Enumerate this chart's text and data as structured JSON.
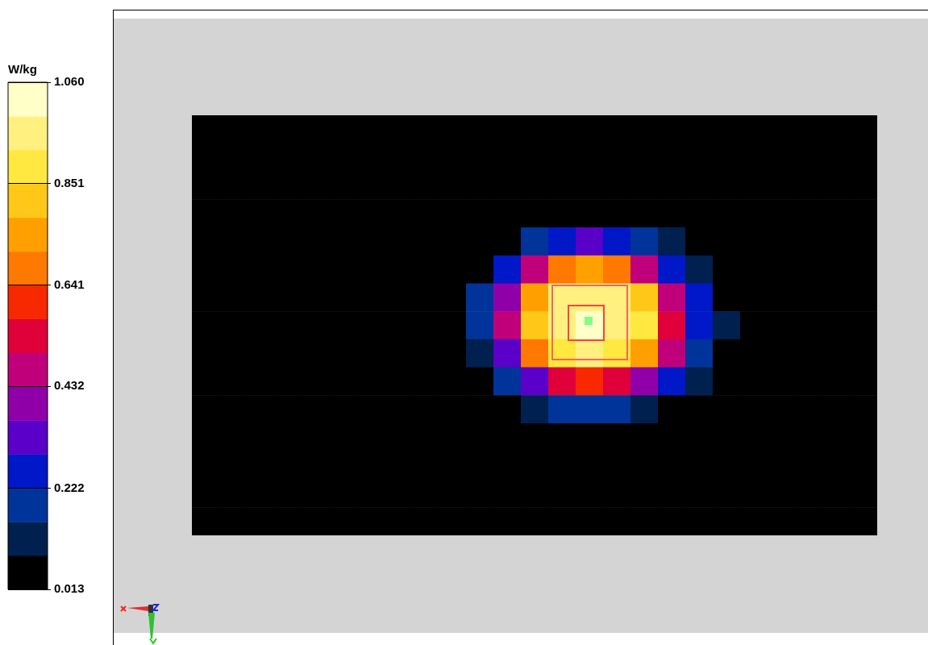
{
  "chart_data": {
    "type": "heatmap",
    "clabel": "W/kg",
    "categories": [
      null,
      null,
      null,
      null,
      null,
      null,
      null,
      null,
      null,
      null,
      null,
      null,
      null,
      null,
      null,
      null,
      null,
      null,
      null,
      null,
      null,
      null,
      null,
      null,
      null
    ],
    "y_categories": [
      null,
      null,
      null,
      null,
      null,
      null,
      null,
      null,
      null,
      null,
      null,
      null,
      null,
      null,
      null
    ],
    "cells": [
      [
        0.013,
        0.013,
        0.013,
        0.013,
        0.013,
        0.013,
        0.013,
        0.013,
        0.013,
        0.013,
        0.013,
        0.013,
        0.013,
        0.013,
        0.013,
        0.013,
        0.013,
        0.013,
        0.013,
        0.013,
        0.013,
        0.013,
        0.013,
        0.013,
        0.013
      ],
      [
        0.013,
        0.013,
        0.013,
        0.013,
        0.013,
        0.013,
        0.013,
        0.013,
        0.013,
        0.013,
        0.013,
        0.013,
        0.013,
        0.013,
        0.013,
        0.013,
        0.013,
        0.013,
        0.013,
        0.013,
        0.013,
        0.013,
        0.013,
        0.013,
        0.013
      ],
      [
        0.013,
        0.013,
        0.013,
        0.013,
        0.013,
        0.013,
        0.013,
        0.013,
        0.013,
        0.013,
        0.013,
        0.013,
        0.013,
        0.013,
        0.013,
        0.013,
        0.013,
        0.013,
        0.013,
        0.013,
        0.013,
        0.013,
        0.013,
        0.013,
        0.013
      ],
      [
        0.013,
        0.013,
        0.013,
        0.013,
        0.013,
        0.013,
        0.013,
        0.013,
        0.013,
        0.013,
        0.013,
        0.013,
        0.013,
        0.04,
        0.06,
        0.04,
        0.013,
        0.013,
        0.013,
        0.013,
        0.013,
        0.013,
        0.013,
        0.013,
        0.013
      ],
      [
        0.013,
        0.013,
        0.013,
        0.013,
        0.013,
        0.013,
        0.013,
        0.013,
        0.013,
        0.013,
        0.013,
        0.08,
        0.18,
        0.27,
        0.3,
        0.27,
        0.19,
        0.1,
        0.02,
        0.013,
        0.013,
        0.013,
        0.013,
        0.013,
        0.013
      ],
      [
        0.013,
        0.013,
        0.013,
        0.013,
        0.013,
        0.013,
        0.013,
        0.013,
        0.013,
        0.013,
        0.08,
        0.24,
        0.46,
        0.67,
        0.75,
        0.67,
        0.48,
        0.29,
        0.14,
        0.02,
        0.013,
        0.013,
        0.013,
        0.013,
        0.013
      ],
      [
        0.013,
        0.013,
        0.013,
        0.013,
        0.013,
        0.013,
        0.013,
        0.013,
        0.013,
        0.013,
        0.16,
        0.4,
        0.77,
        0.95,
        0.98,
        0.95,
        0.81,
        0.5,
        0.24,
        0.08,
        0.013,
        0.013,
        0.013,
        0.013,
        0.013
      ],
      [
        0.013,
        0.013,
        0.013,
        0.013,
        0.013,
        0.013,
        0.013,
        0.013,
        0.013,
        0.013,
        0.18,
        0.46,
        0.83,
        0.98,
        1.06,
        0.98,
        0.86,
        0.57,
        0.29,
        0.1,
        0.013,
        0.013,
        0.013,
        0.013,
        0.013
      ],
      [
        0.013,
        0.013,
        0.013,
        0.013,
        0.013,
        0.013,
        0.013,
        0.013,
        0.013,
        0.013,
        0.14,
        0.35,
        0.68,
        0.88,
        0.95,
        0.89,
        0.73,
        0.44,
        0.21,
        0.07,
        0.013,
        0.013,
        0.013,
        0.013,
        0.013
      ],
      [
        0.013,
        0.013,
        0.013,
        0.013,
        0.013,
        0.013,
        0.013,
        0.013,
        0.013,
        0.013,
        0.05,
        0.19,
        0.35,
        0.52,
        0.58,
        0.52,
        0.39,
        0.23,
        0.11,
        0.013,
        0.013,
        0.013,
        0.013,
        0.013,
        0.013
      ],
      [
        0.013,
        0.013,
        0.013,
        0.013,
        0.013,
        0.013,
        0.013,
        0.013,
        0.013,
        0.013,
        0.013,
        0.04,
        0.13,
        0.19,
        0.21,
        0.19,
        0.13,
        0.07,
        0.013,
        0.013,
        0.013,
        0.013,
        0.013,
        0.013,
        0.013
      ],
      [
        0.013,
        0.013,
        0.013,
        0.013,
        0.013,
        0.013,
        0.013,
        0.013,
        0.013,
        0.013,
        0.013,
        0.013,
        0.013,
        0.013,
        0.013,
        0.013,
        0.013,
        0.013,
        0.013,
        0.013,
        0.013,
        0.013,
        0.013,
        0.013,
        0.013
      ],
      [
        0.013,
        0.013,
        0.013,
        0.013,
        0.013,
        0.013,
        0.013,
        0.013,
        0.013,
        0.013,
        0.013,
        0.013,
        0.013,
        0.013,
        0.013,
        0.013,
        0.013,
        0.013,
        0.013,
        0.013,
        0.013,
        0.013,
        0.013,
        0.013,
        0.013
      ],
      [
        0.013,
        0.013,
        0.013,
        0.013,
        0.013,
        0.013,
        0.013,
        0.013,
        0.013,
        0.013,
        0.013,
        0.013,
        0.013,
        0.013,
        0.013,
        0.013,
        0.013,
        0.013,
        0.013,
        0.013,
        0.013,
        0.013,
        0.013,
        0.013,
        0.013
      ],
      [
        0.013,
        0.013,
        0.013,
        0.013,
        0.013,
        0.013,
        0.013,
        0.013,
        0.013,
        0.013,
        0.013,
        0.013,
        0.013,
        0.013,
        0.013,
        0.013,
        0.013,
        0.013,
        0.013,
        0.013,
        0.013,
        0.013,
        0.013,
        0.013,
        0.013
      ]
    ],
    "clim": [
      0.013,
      1.06
    ],
    "cticks": [
      0.013,
      0.222,
      0.432,
      0.641,
      0.851,
      {
        "value": 1.06,
        "label": "1.060"
      }
    ]
  }
}
